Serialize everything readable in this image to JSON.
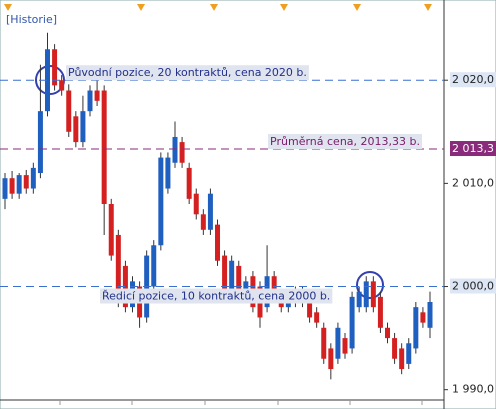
{
  "chart_data": {
    "type": "candlestick",
    "tag": "[Historie]",
    "up_color": "#1f5fbf",
    "down_color": "#d42020",
    "open": [
      2008.5,
      2010.5,
      2009,
      2010.8,
      2009.5,
      2011,
      2017,
      2023,
      2020,
      2019,
      2016.5,
      2014,
      2017,
      2019,
      2019,
      2008,
      2005,
      2002,
      1998,
      2000,
      1997,
      2000,
      2004,
      2009.5,
      2012,
      2014,
      2011.5,
      2009,
      2007,
      2005.5,
      2006,
      2003,
      1999.5,
      2002,
      1999,
      2001,
      2000,
      1998,
      2001,
      1999,
      1998,
      1999.5,
      1998.5,
      1999,
      1997.5,
      1996,
      1994,
      1993,
      1995,
      1994,
      1998,
      1998,
      2000.5,
      1999,
      1996,
      1995,
      1994,
      1992.5,
      1994,
      1997.5,
      1996
    ],
    "high": [
      2011,
      2011.2,
      2011,
      2011.3,
      2012,
      2021.5,
      2024.6,
      2023.5,
      2020.5,
      2019.6,
      2017,
      2018.5,
      2019.5,
      2020,
      2019.5,
      2008.5,
      2005.5,
      2002.5,
      2001,
      2000.5,
      2003.5,
      2004.5,
      2013,
      2013,
      2016,
      2014.5,
      2012,
      2009.5,
      2007.5,
      2009.5,
      2006.5,
      2003.5,
      2003,
      2002.5,
      2001,
      2001.5,
      2000.5,
      2004,
      2001.5,
      1999.5,
      1999.5,
      2000,
      2000,
      1999.5,
      1998,
      1996.5,
      1994.5,
      1996.5,
      1995.5,
      1999.5,
      2000,
      2001,
      2001,
      1999.5,
      1996.5,
      1995.5,
      1994.5,
      1995,
      1998.5,
      1998,
      1999.5
    ],
    "low": [
      2007.5,
      2008.5,
      2008.5,
      2009,
      2009,
      2010.5,
      2016.5,
      2019,
      2018.5,
      2014.5,
      2013.5,
      2013.5,
      2016.5,
      2017.5,
      2005,
      2002.5,
      1998,
      1997.5,
      1997.5,
      1996,
      1996.5,
      1999.5,
      2003.5,
      2009,
      2011.5,
      2011.5,
      2008,
      2006.5,
      2005,
      2005,
      2002,
      1999,
      1999,
      1998.5,
      1998.5,
      1997.5,
      1996,
      1997.5,
      1999,
      1997.5,
      1997.5,
      1998,
      1998,
      1996.5,
      1996,
      1992.5,
      1991,
      1992.5,
      1993,
      1993.5,
      1997.5,
      1997.5,
      1997.5,
      1995.5,
      1994.5,
      1992.5,
      1991.5,
      1992,
      1993.5,
      1996,
      1995
    ],
    "close": [
      2010.5,
      2009,
      2010.8,
      2009.5,
      2011.5,
      2017,
      2023,
      2019.5,
      2019,
      2015,
      2014,
      2017,
      2019,
      2018,
      2008,
      2003,
      1998.5,
      1998,
      2000.5,
      1997,
      2003,
      2004,
      2012.5,
      2012.5,
      2014.5,
      2012,
      2008.5,
      2007,
      2005.5,
      2009,
      2002.5,
      1999.5,
      2002.5,
      1999,
      2000.5,
      1998,
      1997,
      2001,
      1999.5,
      1998,
      1999,
      1998.5,
      1999.5,
      1997,
      1996.5,
      1993,
      1992,
      1996,
      1993.5,
      1999,
      1999.5,
      2000.5,
      1998,
      1996,
      1995,
      1993,
      1992,
      1994.5,
      1998,
      1996.5,
      1998.5
    ],
    "ylim": [
      1989,
      2027
    ],
    "yticks": [
      {
        "value": 2020,
        "label": "2 020,0"
      },
      {
        "value": 2010,
        "label": "2 010,0"
      },
      {
        "value": 2000,
        "label": "2 000,0"
      },
      {
        "value": 1990,
        "label": "1 990,0"
      }
    ],
    "levels": [
      {
        "value": 2020,
        "color": "#3a6fd0",
        "text": "Původní pozice, 20 kontraktů, cena 2020 b."
      },
      {
        "value": 2013.33,
        "color": "#8a2a7a",
        "axis_label": "2 013,3",
        "text": "Průměrná cena, 2013,33 b."
      },
      {
        "value": 2000,
        "color": "#3a6fd0",
        "text": "Ředicí pozice, 10 kontraktů, cena 2000 b."
      }
    ]
  }
}
